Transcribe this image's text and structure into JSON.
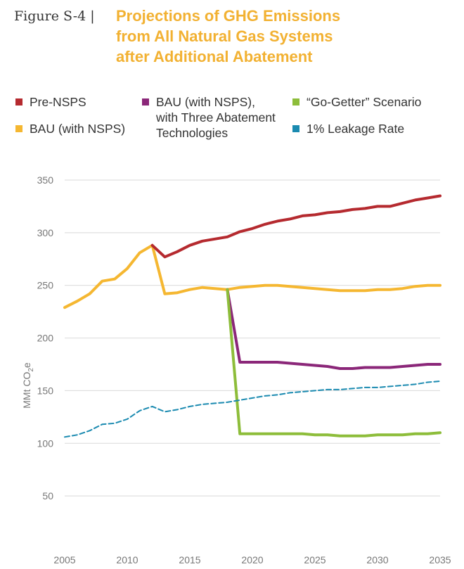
{
  "figure": {
    "label": "Figure S-4  |",
    "title_lines": [
      "Projections of GHG Emissions",
      "from All Natural Gas Systems",
      "after Additional Abatement"
    ]
  },
  "colors": {
    "title": "#f2b132",
    "pre_nsps": "#b52a2f",
    "bau_nsps": "#f5b731",
    "bau_three_tech": "#8b2779",
    "go_getter": "#8dbd3a",
    "leakage": "#1a8ab0",
    "grid": "#d9d9d9",
    "tick": "#777777"
  },
  "legend": [
    {
      "key": "pre_nsps",
      "lines": [
        "Pre-NSPS"
      ]
    },
    {
      "key": "bau_nsps",
      "lines": [
        "BAU (with NSPS)"
      ]
    },
    {
      "key": "bau_three_tech",
      "lines": [
        "BAU (with NSPS),",
        "with Three Abatement",
        "Technologies"
      ]
    },
    {
      "key": "go_getter",
      "lines": [
        "“Go-Getter” Scenario"
      ]
    },
    {
      "key": "leakage",
      "lines": [
        "1% Leakage Rate"
      ]
    }
  ],
  "chart_data": {
    "type": "line",
    "ylabel": "MMt CO2e",
    "ylabel_parts": {
      "main": "MMt CO",
      "sub": "2",
      "suffix": "e"
    },
    "xlim": [
      2005,
      2035
    ],
    "ylim": [
      0,
      350
    ],
    "yticks": [
      50,
      100,
      150,
      200,
      250,
      300,
      350
    ],
    "xticks": [
      2005,
      2010,
      2015,
      2020,
      2025,
      2030,
      2035
    ],
    "grid": "horizontal",
    "series": [
      {
        "name": "BAU (with NSPS)",
        "key": "bau_nsps",
        "style": "solid",
        "x": [
          2005,
          2006,
          2007,
          2008,
          2009,
          2010,
          2011,
          2012,
          2013,
          2014,
          2015,
          2016,
          2017,
          2018,
          2019,
          2020,
          2021,
          2022,
          2023,
          2024,
          2025,
          2026,
          2027,
          2028,
          2029,
          2030,
          2031,
          2032,
          2033,
          2034,
          2035
        ],
        "y": [
          229,
          235,
          242,
          254,
          256,
          266,
          281,
          288,
          242,
          243,
          246,
          248,
          247,
          246,
          248,
          249,
          250,
          250,
          249,
          248,
          247,
          246,
          245,
          245,
          245,
          246,
          246,
          247,
          249,
          250,
          250
        ]
      },
      {
        "name": "Pre-NSPS",
        "key": "pre_nsps",
        "style": "solid",
        "x": [
          2012,
          2013,
          2014,
          2015,
          2016,
          2017,
          2018,
          2019,
          2020,
          2021,
          2022,
          2023,
          2024,
          2025,
          2026,
          2027,
          2028,
          2029,
          2030,
          2031,
          2032,
          2033,
          2034,
          2035
        ],
        "y": [
          288,
          277,
          282,
          288,
          292,
          294,
          296,
          301,
          304,
          308,
          311,
          313,
          316,
          317,
          319,
          320,
          322,
          323,
          325,
          325,
          328,
          331,
          333,
          335
        ]
      },
      {
        "name": "BAU (with NSPS), with Three Abatement Technologies",
        "key": "bau_three_tech",
        "style": "solid",
        "x": [
          2018,
          2019,
          2020,
          2021,
          2022,
          2023,
          2024,
          2025,
          2026,
          2027,
          2028,
          2029,
          2030,
          2031,
          2032,
          2033,
          2034,
          2035
        ],
        "y": [
          246,
          177,
          177,
          177,
          177,
          176,
          175,
          174,
          173,
          171,
          171,
          172,
          172,
          172,
          173,
          174,
          175,
          175
        ]
      },
      {
        "name": "“Go-Getter” Scenario",
        "key": "go_getter",
        "style": "solid",
        "x": [
          2018,
          2019,
          2020,
          2021,
          2022,
          2023,
          2024,
          2025,
          2026,
          2027,
          2028,
          2029,
          2030,
          2031,
          2032,
          2033,
          2034,
          2035
        ],
        "y": [
          246,
          109,
          109,
          109,
          109,
          109,
          109,
          108,
          108,
          107,
          107,
          107,
          108,
          108,
          108,
          109,
          109,
          110
        ]
      },
      {
        "name": "1% Leakage Rate",
        "key": "leakage",
        "style": "dashed",
        "x": [
          2005,
          2006,
          2007,
          2008,
          2009,
          2010,
          2011,
          2012,
          2013,
          2014,
          2015,
          2016,
          2017,
          2018,
          2019,
          2020,
          2021,
          2022,
          2023,
          2024,
          2025,
          2026,
          2027,
          2028,
          2029,
          2030,
          2031,
          2032,
          2033,
          2034,
          2035
        ],
        "y": [
          106,
          108,
          112,
          118,
          119,
          123,
          131,
          135,
          130,
          132,
          135,
          137,
          138,
          139,
          141,
          143,
          145,
          146,
          148,
          149,
          150,
          151,
          151,
          152,
          153,
          153,
          154,
          155,
          156,
          158,
          159
        ]
      }
    ]
  }
}
